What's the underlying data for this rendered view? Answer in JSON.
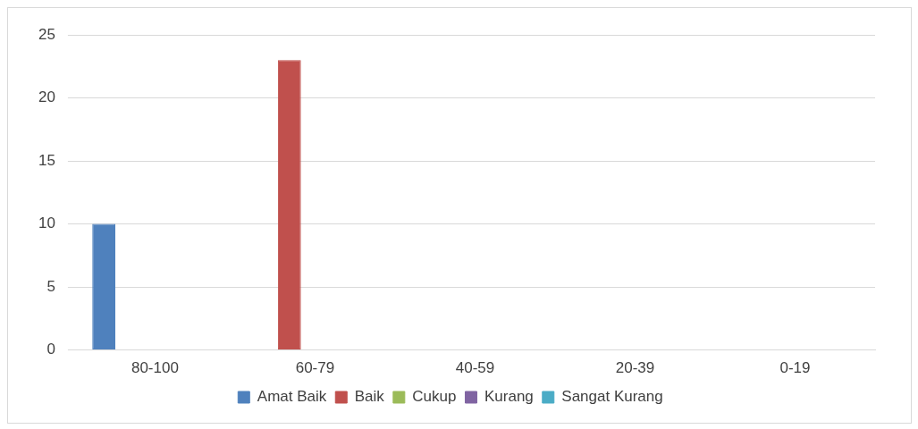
{
  "chart_data": {
    "type": "bar",
    "categories": [
      "80-100",
      "60-79",
      "40-59",
      "20-39",
      "0-19"
    ],
    "series": [
      {
        "name": "Amat Baik",
        "color": "#4f81bd",
        "values": [
          10,
          null,
          null,
          null,
          null
        ]
      },
      {
        "name": "Baik",
        "color": "#c0504d",
        "values": [
          null,
          23,
          null,
          null,
          null
        ]
      },
      {
        "name": "Cukup",
        "color": "#9bbb59",
        "values": [
          null,
          null,
          0,
          null,
          null
        ]
      },
      {
        "name": "Kurang",
        "color": "#8064a2",
        "values": [
          null,
          null,
          null,
          0,
          null
        ]
      },
      {
        "name": "Sangat Kurang",
        "color": "#4bacc6",
        "values": [
          null,
          null,
          null,
          null,
          0
        ]
      }
    ],
    "ylim": [
      0,
      25
    ],
    "yticks": [
      0,
      5,
      10,
      15,
      20,
      25
    ],
    "grid": "y",
    "legend": "bottom"
  }
}
